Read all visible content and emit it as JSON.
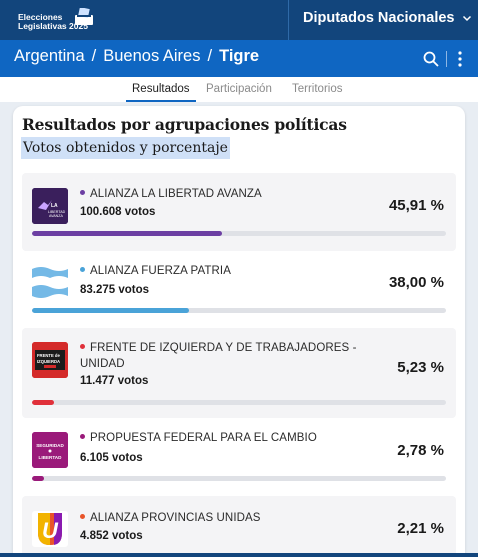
{
  "header": {
    "logo_line1": "Elecciones",
    "logo_line2": "Legislativas 2025",
    "chamber_label": "Diputados Nacionales"
  },
  "breadcrumb": {
    "items": [
      "Argentina",
      "Buenos Aires"
    ],
    "current": "Tigre",
    "separator": "/"
  },
  "tabs": [
    {
      "label": "Resultados",
      "active": true
    },
    {
      "label": "Participación",
      "active": false
    },
    {
      "label": "Territorios",
      "active": false
    }
  ],
  "results": {
    "title": "Resultados por agrupaciones políticas",
    "subtitle": "Votos obtenidos y porcentaje",
    "parties": [
      {
        "name": "ALIANZA LA LIBERTAD AVANZA",
        "votes": "100.608 votos",
        "percent": "45,91 %",
        "share": 0.4591,
        "color": "#6c3fa3",
        "logo_text": "LA LIBERTAD AVANZA",
        "icon": "la-libertad-avanza-logo"
      },
      {
        "name": "ALIANZA FUERZA PATRIA",
        "votes": "83.275 votos",
        "percent": "38,00 %",
        "share": 0.38,
        "color": "#4aa3d8",
        "logo_text": "",
        "icon": "fuerza-patria-flag-logo"
      },
      {
        "name": "FRENTE DE IZQUIERDA Y DE TRABAJADORES - UNIDAD",
        "votes": "11.477 votos",
        "percent": "5,23 %",
        "share": 0.0523,
        "color": "#e0303a",
        "logo_text": "FRENTE DE IZQUIERDA",
        "icon": "frente-izquierda-logo"
      },
      {
        "name": "PROPUESTA FEDERAL PARA EL CAMBIO",
        "votes": "6.105 votos",
        "percent": "2,78 %",
        "share": 0.0278,
        "color": "#9a1a7a",
        "logo_text": "SEGURIDAD LIBERTAD",
        "icon": "seguridad-libertad-logo"
      },
      {
        "name": "ALIANZA PROVINCIAS UNIDAS",
        "votes": "4.852 votos",
        "percent": "2,21 %",
        "share": 0.0221,
        "color": "#e8542a",
        "logo_text": "U",
        "icon": "provincias-unidas-logo"
      }
    ]
  },
  "colors": {
    "header_bg": "#12457c",
    "breadcrumb_bg": "#0f66c2",
    "accent": "#0f66c2"
  }
}
